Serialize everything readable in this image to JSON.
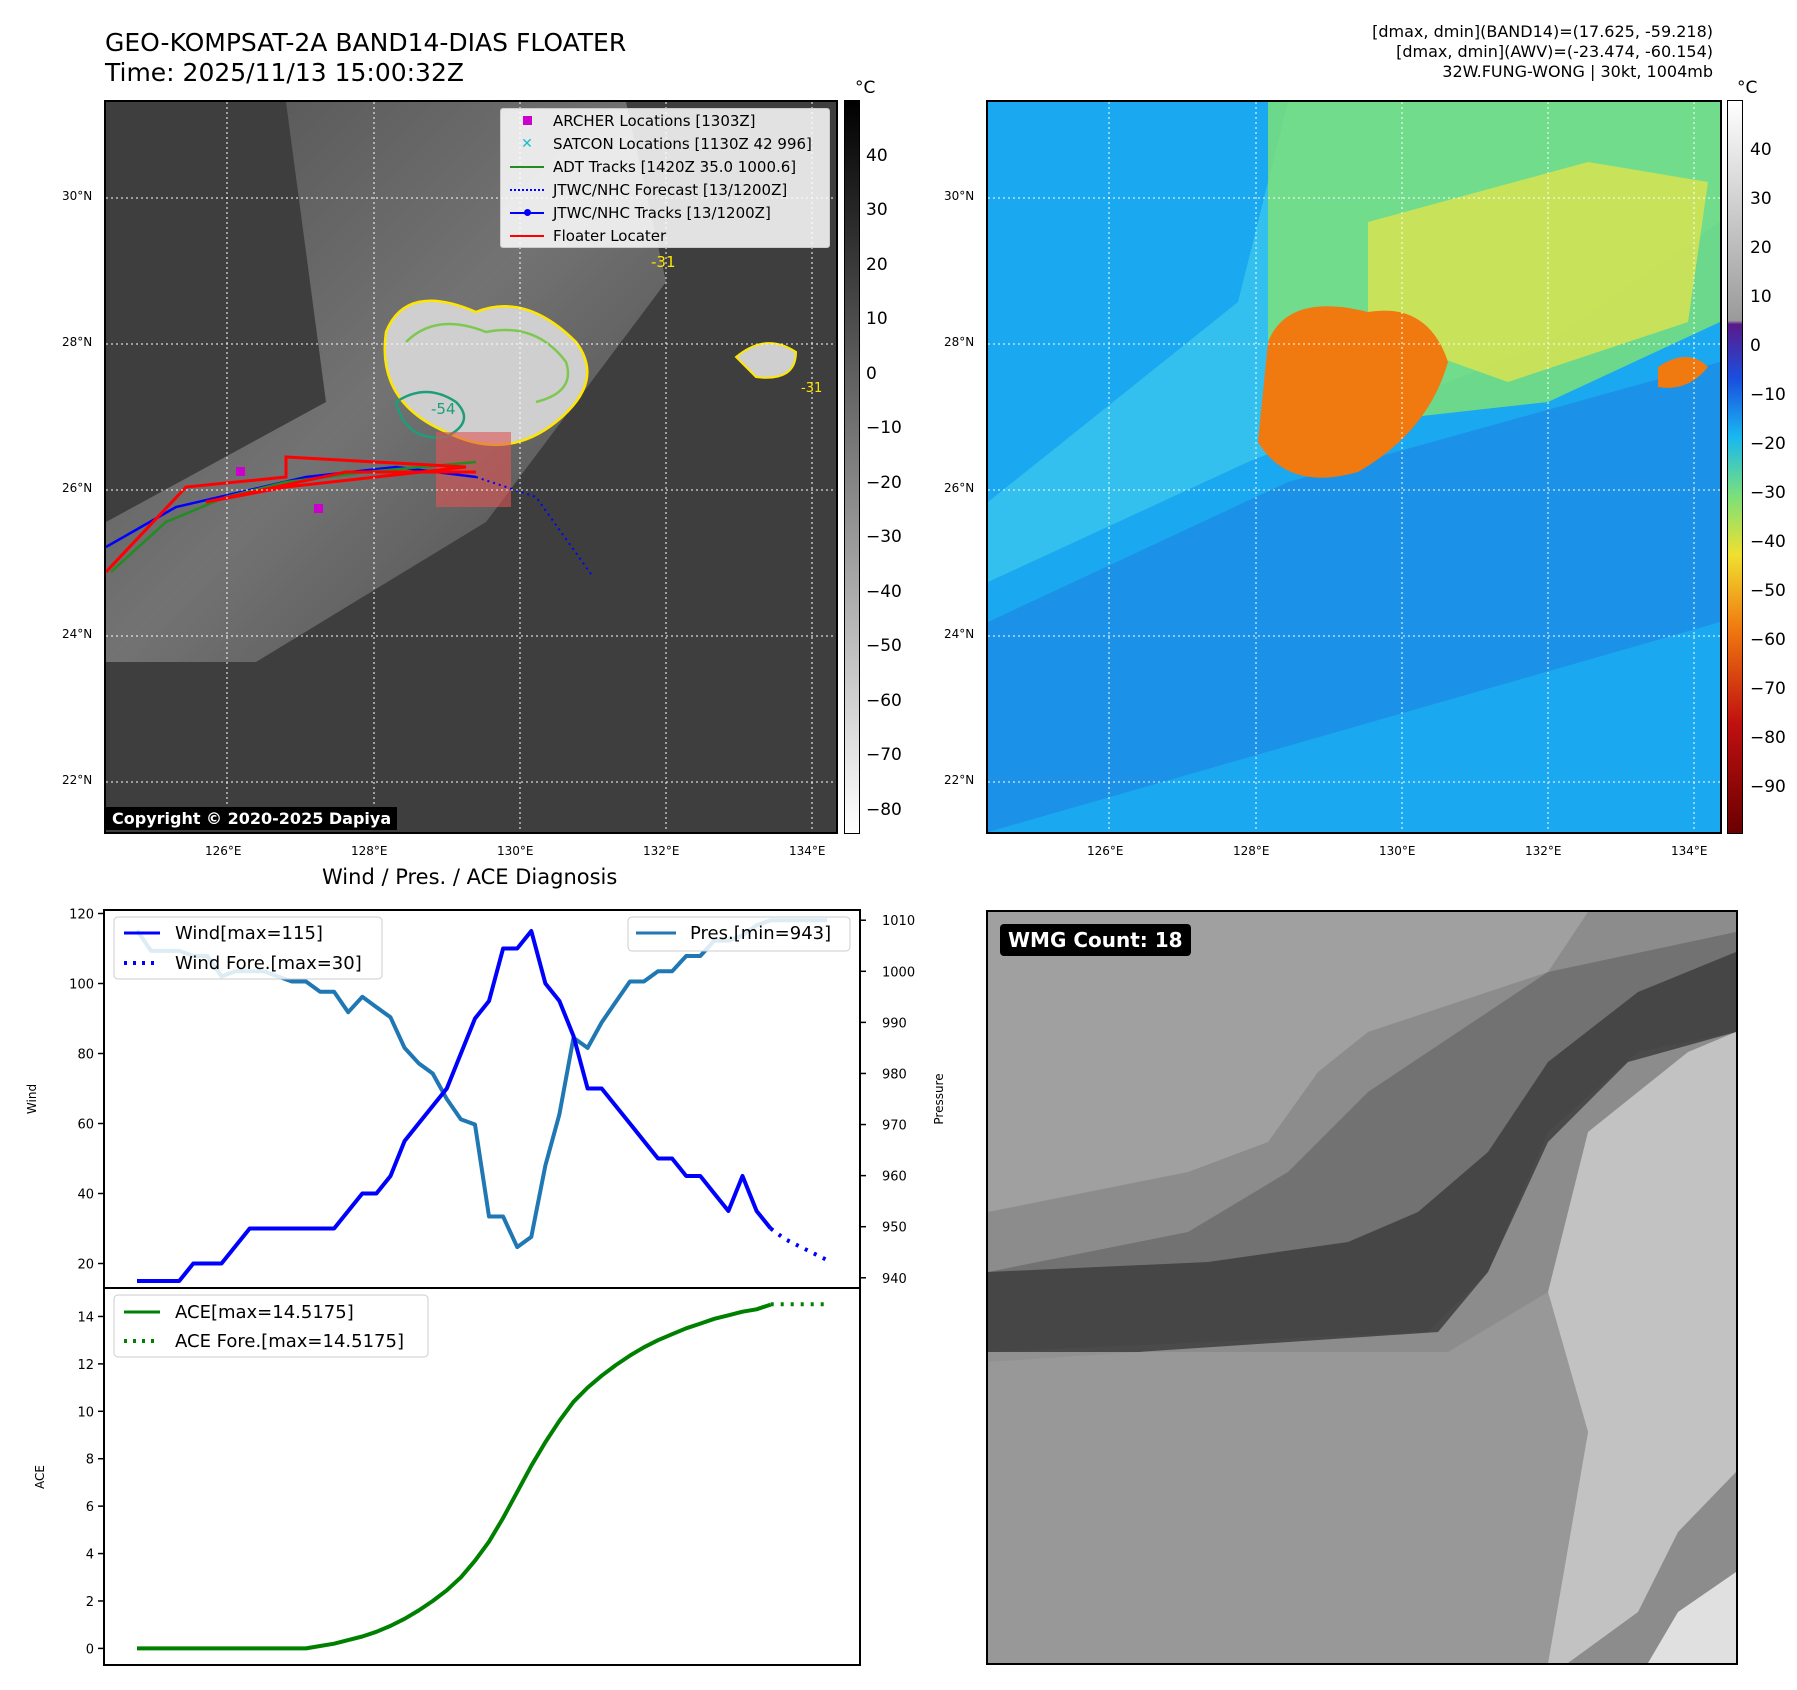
{
  "header": {
    "title_line1": "GEO-KOMPSAT-2A BAND14-DIAS FLOATER",
    "title_line2": "Time: 2025/11/13 15:00:32Z",
    "stats_line1": "[dmax, dmin](BAND14)=(17.625, -59.218)",
    "stats_line2": "[dmax, dmin](AWV)=(-23.474, -60.154)",
    "stats_line3": "32W.FUNG-WONG | 30kt, 1004mb"
  },
  "map": {
    "lat_labels": [
      "30°N",
      "28°N",
      "26°N",
      "24°N",
      "22°N"
    ],
    "lon_labels": [
      "126°E",
      "128°E",
      "130°E",
      "132°E",
      "134°E"
    ],
    "contour_labels": [
      "-54",
      "-31",
      "-31"
    ],
    "copyright": "Copyright © 2020-2025 Dapiya",
    "colorbar_unit": "°C",
    "gray_colorbar_ticks": [
      "40",
      "30",
      "20",
      "10",
      "0",
      "−10",
      "−20",
      "−30",
      "−40",
      "−50",
      "−60",
      "−70",
      "−80"
    ],
    "color_colorbar_ticks": [
      "40",
      "30",
      "20",
      "10",
      "0",
      "−10",
      "−20",
      "−30",
      "−40",
      "−50",
      "−60",
      "−70",
      "−80",
      "−90"
    ],
    "legend": [
      {
        "label": "ARCHER Locations [1303Z]",
        "color": "#cc00cc",
        "symbol": "square"
      },
      {
        "label": "SATCON Locations [1130Z 42 996]",
        "color": "#17becf",
        "symbol": "x"
      },
      {
        "label": "ADT Tracks [1420Z 35.0 1000.6]",
        "color": "#228b22",
        "symbol": "line"
      },
      {
        "label": "JTWC/NHC Forecast [13/1200Z]",
        "color": "#0000ff",
        "symbol": "dotted"
      },
      {
        "label": "JTWC/NHC Tracks [13/1200Z]",
        "color": "#0000ff",
        "symbol": "line-dot"
      },
      {
        "label": "Floater Locater",
        "color": "#ff0000",
        "symbol": "line"
      }
    ]
  },
  "diagnosis": {
    "title": "Wind / Pres. / ACE Diagnosis",
    "wind_ylabel": "Wind",
    "pres_ylabel": "Pressure",
    "ace_ylabel": "ACE",
    "legend_wind": "Wind[max=115]",
    "legend_wind_fore": "Wind Fore.[max=30]",
    "legend_pres": "Pres.[min=943]",
    "legend_ace": "ACE[max=14.5175]",
    "legend_ace_fore": "ACE Fore.[max=14.5175]",
    "wmg_label": "WMG Count: 18"
  },
  "chart_data": [
    {
      "type": "line",
      "title": "Wind / Pres. / ACE Diagnosis",
      "ylabel": "Wind",
      "ylim": [
        13,
        121
      ],
      "yticks": [
        20,
        40,
        60,
        80,
        100,
        120
      ],
      "series": [
        {
          "name": "Wind[max=115]",
          "color": "#0000ff",
          "style": "solid",
          "x": [
            0,
            1,
            2,
            3,
            4,
            5,
            6,
            7,
            8,
            9,
            10,
            11,
            12,
            13,
            14,
            15,
            16,
            17,
            18,
            19,
            20,
            21,
            22,
            23,
            24,
            25,
            26,
            27,
            28,
            29,
            30,
            31,
            32,
            33,
            34,
            35,
            36,
            37,
            38,
            39,
            40,
            41,
            42,
            43,
            44,
            45,
            46,
            47,
            48,
            49
          ],
          "values": [
            15,
            15,
            15,
            15,
            20,
            20,
            20,
            25,
            30,
            30,
            30,
            30,
            30,
            30,
            30,
            35,
            40,
            40,
            45,
            55,
            60,
            65,
            70,
            80,
            90,
            95,
            110,
            110,
            115,
            100,
            95,
            85,
            70,
            70,
            65,
            60,
            55,
            50,
            50,
            45,
            45,
            40,
            35,
            45,
            35,
            30,
            null,
            null,
            null,
            null
          ]
        },
        {
          "name": "Wind Fore.[max=30]",
          "color": "#0000ff",
          "style": "dotted",
          "x": [
            45,
            46,
            47,
            48,
            49
          ],
          "values": [
            30,
            27,
            25,
            23,
            21
          ]
        }
      ]
    },
    {
      "type": "line",
      "ylabel": "Pressure",
      "ylim": [
        938,
        1012
      ],
      "yticks": [
        940,
        950,
        960,
        970,
        980,
        990,
        1000,
        1010
      ],
      "series": [
        {
          "name": "Pres.[min=943]",
          "color": "#1f77b4",
          "style": "solid",
          "x": [
            0,
            1,
            2,
            3,
            4,
            5,
            6,
            7,
            8,
            9,
            10,
            11,
            12,
            13,
            14,
            15,
            16,
            17,
            18,
            19,
            20,
            21,
            22,
            23,
            24,
            25,
            26,
            27,
            28,
            29,
            30,
            31,
            32,
            33,
            34,
            35,
            36,
            37,
            38,
            39,
            40,
            41,
            42,
            43,
            44,
            45,
            46,
            47,
            48,
            49
          ],
          "values": [
            1008,
            1004,
            1004,
            1004,
            1003,
            1003,
            999,
            1000,
            1000,
            1000,
            999,
            998,
            998,
            996,
            996,
            992,
            995,
            993,
            991,
            985,
            982,
            980,
            975,
            971,
            970,
            952,
            952,
            946,
            948,
            962,
            972,
            987,
            985,
            990,
            994,
            998,
            998,
            1000,
            1000,
            1003,
            1003,
            1006,
            1006,
            1007,
            1009,
            1010,
            1010,
            1010,
            1010,
            1010
          ]
        }
      ]
    },
    {
      "type": "line",
      "ylabel": "ACE",
      "ylim": [
        -0.7,
        15.2
      ],
      "yticks": [
        0,
        2,
        4,
        6,
        8,
        10,
        12,
        14
      ],
      "series": [
        {
          "name": "ACE[max=14.5175]",
          "color": "#008000",
          "style": "solid",
          "x": [
            0,
            2,
            4,
            6,
            8,
            10,
            12,
            13,
            14,
            15,
            16,
            17,
            18,
            19,
            20,
            21,
            22,
            23,
            24,
            25,
            26,
            27,
            28,
            29,
            30,
            31,
            32,
            33,
            34,
            35,
            36,
            37,
            38,
            39,
            40,
            41,
            42,
            43,
            44,
            45
          ],
          "values": [
            0,
            0,
            0,
            0,
            0,
            0,
            0,
            0.1,
            0.2,
            0.35,
            0.5,
            0.7,
            0.95,
            1.25,
            1.6,
            2.0,
            2.45,
            3.0,
            3.7,
            4.5,
            5.5,
            6.6,
            7.7,
            8.7,
            9.6,
            10.4,
            11.0,
            11.5,
            11.95,
            12.35,
            12.7,
            13.0,
            13.25,
            13.5,
            13.7,
            13.9,
            14.05,
            14.2,
            14.3,
            14.5
          ]
        },
        {
          "name": "ACE Fore.[max=14.5175]",
          "color": "#008000",
          "style": "dotted",
          "x": [
            45,
            46,
            47,
            48,
            49
          ],
          "values": [
            14.5175,
            14.5175,
            14.5175,
            14.5175,
            14.5175
          ]
        }
      ]
    }
  ]
}
